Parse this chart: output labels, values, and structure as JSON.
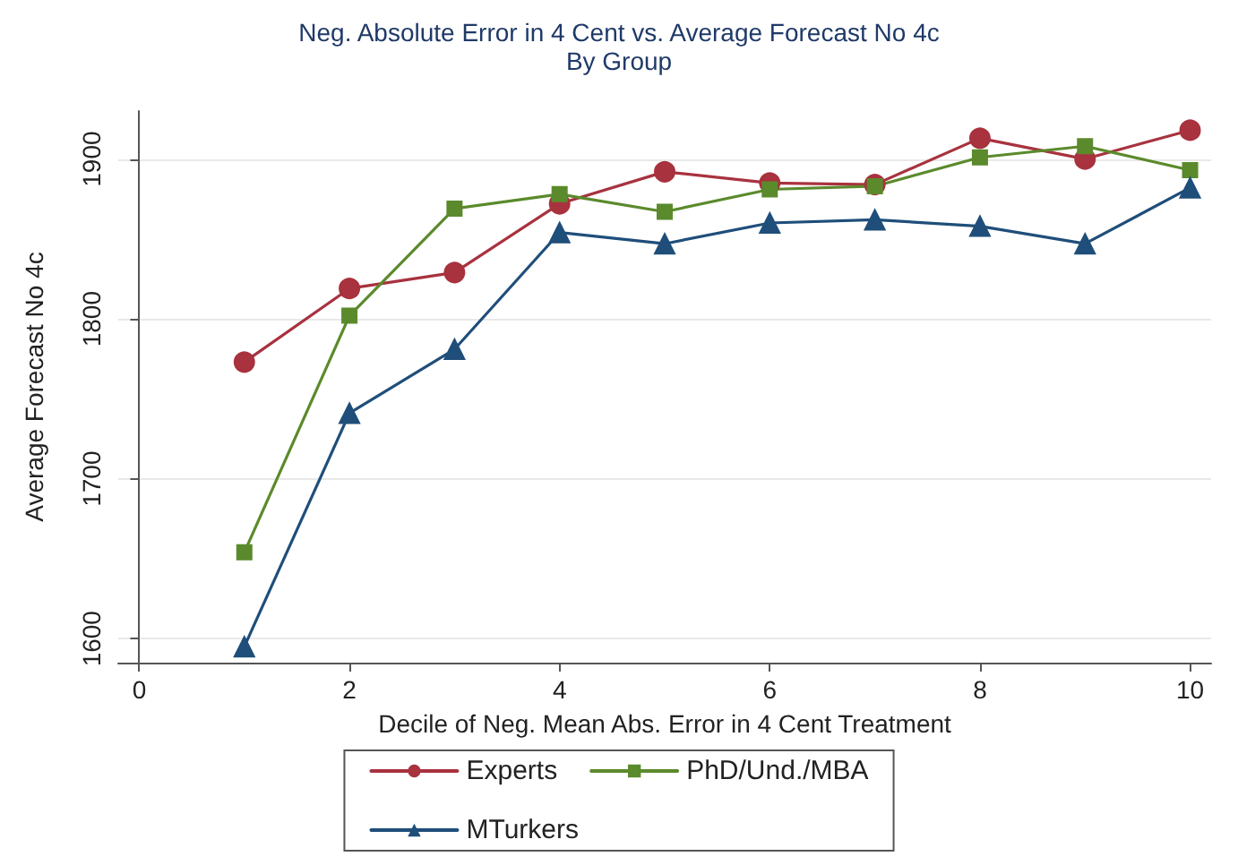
{
  "chart_data": {
    "type": "line",
    "title": "Neg. Absolute Error in 4 Cent vs. Average Forecast No 4c",
    "subtitle": "By Group",
    "xlabel": "Decile of Neg. Mean Abs. Error in 4 Cent Treatment",
    "ylabel": "Average Forecast No 4c",
    "x": [
      1,
      2,
      3,
      4,
      5,
      6,
      7,
      8,
      9,
      10
    ],
    "series": [
      {
        "name": "Experts",
        "color": "#a8323e",
        "marker": "circle",
        "values": [
          1773,
          1819,
          1829,
          1872,
          1892,
          1885,
          1884,
          1913,
          1900,
          1918
        ]
      },
      {
        "name": "PhD/Und./MBA",
        "color": "#5b8a2c",
        "marker": "square",
        "values": [
          1654,
          1802,
          1869,
          1878,
          1867,
          1881,
          1883,
          1901,
          1908,
          1893
        ]
      },
      {
        "name": "MTurkers",
        "color": "#1f4e7a",
        "marker": "triangle",
        "values": [
          1595,
          1741,
          1781,
          1854,
          1847,
          1860,
          1862,
          1858,
          1847,
          1882
        ]
      }
    ],
    "xlim": [
      -0.2,
      10.2
    ],
    "xticks": [
      0,
      2,
      4,
      6,
      8,
      10
    ],
    "ylim": [
      1585,
      1930
    ],
    "yticks": [
      1600,
      1700,
      1800,
      1900
    ],
    "grid": "y",
    "legend": "bottom",
    "line_style": "solid"
  }
}
